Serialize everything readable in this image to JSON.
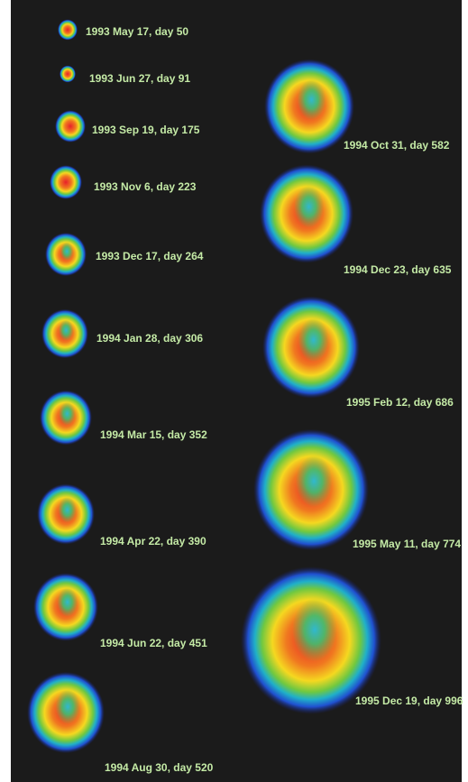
{
  "images": [
    {
      "label": "1993 May 17, day 50"
    },
    {
      "label": "1993 Jun 27, day 91"
    },
    {
      "label": "1993 Sep 19, day 175"
    },
    {
      "label": "1993 Nov 6, day 223"
    },
    {
      "label": "1993 Dec 17, day 264"
    },
    {
      "label": "1994 Jan 28, day 306"
    },
    {
      "label": "1994 Mar 15, day 352"
    },
    {
      "label": "1994 Apr 22, day 390"
    },
    {
      "label": "1994 Jun 22, day 451"
    },
    {
      "label": "1994 Aug 30, day 520"
    },
    {
      "label": "1994 Oct 31, day 582"
    },
    {
      "label": "1994 Dec 23, day 635"
    },
    {
      "label": "1995 Feb 12, day 686"
    },
    {
      "label": "1995 May 11, day 774"
    },
    {
      "label": "1995 Dec 19, day 996"
    }
  ]
}
